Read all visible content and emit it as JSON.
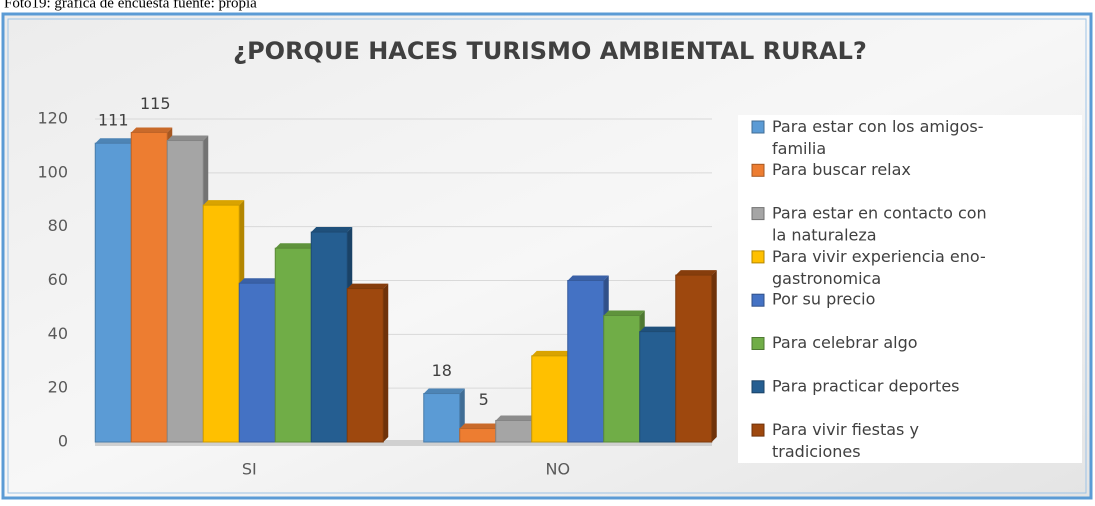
{
  "caption": "Foto19: grafica de encuesta fuente: propia",
  "chart_data": {
    "type": "bar",
    "title": "¿PORQUE HACES TURISMO AMBIENTAL RURAL?",
    "categories": [
      "SI",
      "NO"
    ],
    "series": [
      {
        "name": "Para estar con los amigos-familia",
        "color": "#5b9bd5",
        "values": [
          111,
          18
        ],
        "show_labels": true
      },
      {
        "name": "Para buscar relax",
        "color": "#ed7d31",
        "values": [
          115,
          5
        ],
        "show_labels": true
      },
      {
        "name": "Para estar en contacto con la naturaleza",
        "color": "#a5a5a5",
        "values": [
          112,
          8
        ]
      },
      {
        "name": "Para vivir experiencia eno-gastronomica",
        "color": "#ffc000",
        "values": [
          88,
          32
        ]
      },
      {
        "name": "Por su precio",
        "color": "#4472c4",
        "values": [
          59,
          60
        ]
      },
      {
        "name": "Para celebrar algo",
        "color": "#70ad47",
        "values": [
          72,
          47
        ]
      },
      {
        "name": "Para practicar deportes",
        "color": "#255e91",
        "values": [
          78,
          41
        ]
      },
      {
        "name": "Para vivir fiestas y tradiciones",
        "color": "#9e480e",
        "values": [
          57,
          62
        ]
      }
    ],
    "ylim": [
      0,
      120
    ],
    "yticks": [
      0,
      20,
      40,
      60,
      80,
      100,
      120
    ],
    "grid": true,
    "legend": "right"
  }
}
